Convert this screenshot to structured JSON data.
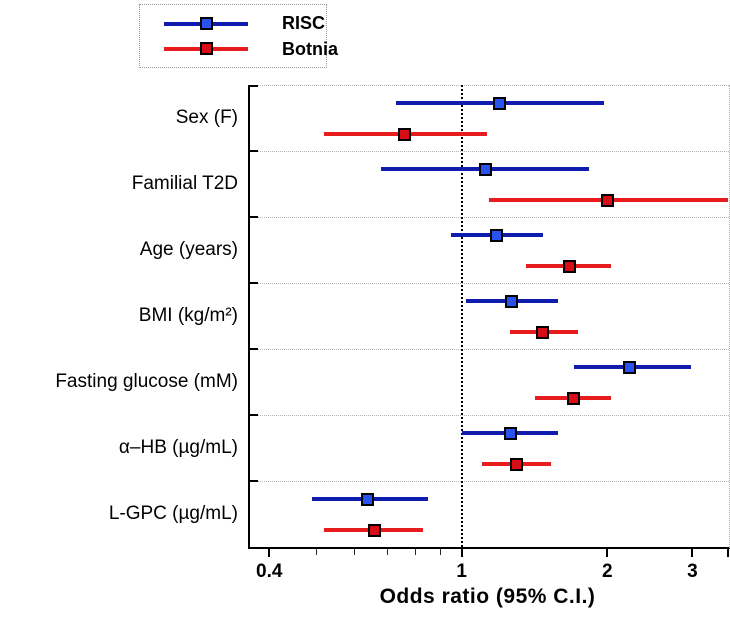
{
  "legend": {
    "items": [
      {
        "label": "RISC",
        "line_color": "#101cae",
        "marker_fill": "#2a52ee"
      },
      {
        "label": "Botnia",
        "line_color": "#e81c1c",
        "marker_fill": "#d90d15"
      }
    ]
  },
  "colors": {
    "risc_line": "#101cae",
    "risc_marker": "#2a52ee",
    "botnia_line": "#e81c1c",
    "botnia_marker": "#d90d15",
    "separator": "#b4b4b4",
    "axis": "#000000"
  },
  "chart_data": {
    "type": "forest",
    "x_scale": "log",
    "x_domain": [
      0.365,
      3.57
    ],
    "x_major_ticks": [
      "0.4",
      "1",
      "2",
      "3"
    ],
    "x_major_tick_values": [
      0.4,
      1,
      2,
      3
    ],
    "x_minor_tick_values": [
      0.5,
      0.6,
      0.7,
      0.8,
      0.9
    ],
    "xlabel": "Odds ratio (95% C.I.)",
    "reference_line": 1.0,
    "grid": "row-separators",
    "legend_position": "top-left-outside",
    "series": [
      {
        "name": "RISC"
      },
      {
        "name": "Botnia"
      }
    ],
    "rows": [
      {
        "label": "Sex (F)",
        "risc": {
          "or": 1.2,
          "lo": 0.73,
          "hi": 1.97
        },
        "botnia": {
          "or": 0.76,
          "lo": 0.52,
          "hi": 1.13
        }
      },
      {
        "label": "Familial T2D",
        "risc": {
          "or": 1.12,
          "lo": 0.68,
          "hi": 1.83
        },
        "botnia": {
          "or": 2.0,
          "lo": 1.14,
          "hi": 3.55
        }
      },
      {
        "label": "Age (years)",
        "risc": {
          "or": 1.18,
          "lo": 0.95,
          "hi": 1.47
        },
        "botnia": {
          "or": 1.67,
          "lo": 1.36,
          "hi": 2.04
        }
      },
      {
        "label": "BMI (kg/m²)",
        "risc": {
          "or": 1.27,
          "lo": 1.02,
          "hi": 1.58
        },
        "botnia": {
          "or": 1.47,
          "lo": 1.26,
          "hi": 1.74
        }
      },
      {
        "label": "Fasting glucose (mM)",
        "risc": {
          "or": 2.22,
          "lo": 1.71,
          "hi": 2.98
        },
        "botnia": {
          "or": 1.7,
          "lo": 1.42,
          "hi": 2.04
        }
      },
      {
        "label": "α–HB (µg/mL)",
        "risc": {
          "or": 1.26,
          "lo": 1.0,
          "hi": 1.58
        },
        "botnia": {
          "or": 1.3,
          "lo": 1.1,
          "hi": 1.53
        }
      },
      {
        "label": "L-GPC (µg/mL)",
        "risc": {
          "or": 0.64,
          "lo": 0.49,
          "hi": 0.85
        },
        "botnia": {
          "or": 0.66,
          "lo": 0.52,
          "hi": 0.83
        }
      }
    ]
  }
}
